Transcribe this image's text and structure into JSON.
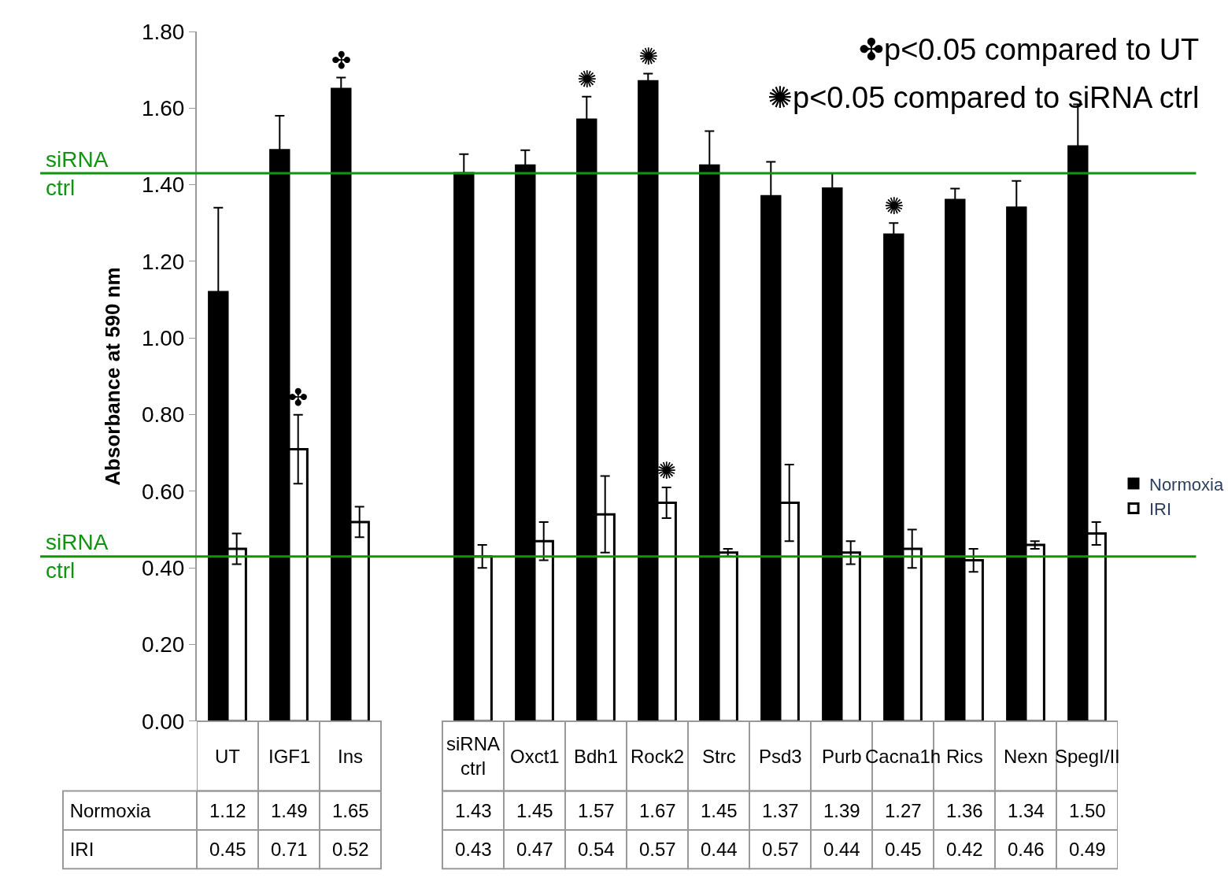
{
  "chart_data": {
    "type": "bar",
    "ylabel": "Absorbance at 590 nm",
    "categories": [
      "UT",
      "IGF1",
      "Ins",
      null,
      "siRNA ctrl",
      "Oxct1",
      "Bdh1",
      "Rock2",
      "Strc",
      "Psd3",
      "Purb",
      "Cacna1h",
      "Rics",
      "Nexn",
      "SpegI/II"
    ],
    "series": [
      {
        "name": "Normoxia",
        "color": "#000000",
        "values": [
          1.12,
          1.49,
          1.65,
          null,
          1.43,
          1.45,
          1.57,
          1.67,
          1.45,
          1.37,
          1.39,
          1.27,
          1.36,
          1.34,
          1.5
        ],
        "value_labels": [
          "1.12",
          "1.49",
          "1.65",
          null,
          "1.43",
          "1.45",
          "1.57",
          "1.67",
          "1.45",
          "1.37",
          "1.39",
          "1.27",
          "1.36",
          "1.34",
          "1.50"
        ],
        "errors": [
          0.22,
          0.09,
          0.03,
          null,
          0.05,
          0.04,
          0.06,
          0.02,
          0.09,
          0.09,
          0.04,
          0.03,
          0.03,
          0.07,
          0.11
        ]
      },
      {
        "name": "IRI",
        "color": "#ffffff",
        "values": [
          0.45,
          0.71,
          0.52,
          null,
          0.43,
          0.47,
          0.54,
          0.57,
          0.44,
          0.57,
          0.44,
          0.45,
          0.42,
          0.46,
          0.49
        ],
        "value_labels": [
          "0.45",
          "0.71",
          "0.52",
          null,
          "0.43",
          "0.47",
          "0.54",
          "0.57",
          "0.44",
          "0.57",
          "0.44",
          "0.45",
          "0.42",
          "0.46",
          "0.49"
        ],
        "errors": [
          0.04,
          0.09,
          0.04,
          null,
          0.03,
          0.05,
          0.1,
          0.04,
          0.01,
          0.1,
          0.03,
          0.05,
          0.03,
          0.01,
          0.03
        ]
      }
    ],
    "ylim": [
      0,
      1.8
    ],
    "yticks": [
      {
        "value": 0,
        "label": "0.00"
      },
      {
        "value": 0.2,
        "label": "0.20"
      },
      {
        "value": 0.4,
        "label": "0.40"
      },
      {
        "value": 0.6,
        "label": "0.60"
      },
      {
        "value": 0.8,
        "label": "0.80"
      },
      {
        "value": 1.0,
        "label": "1.00"
      },
      {
        "value": 1.2,
        "label": "1.20"
      },
      {
        "value": 1.4,
        "label": "1.40"
      },
      {
        "value": 1.6,
        "label": "1.60"
      },
      {
        "value": 1.8,
        "label": "1.80"
      }
    ],
    "ref_lines": [
      {
        "axis": "y",
        "value": 1.43,
        "label": "siRNA ctrl",
        "color": "#109410"
      },
      {
        "axis": "y",
        "value": 0.43,
        "label": "siRNA ctrl",
        "color": "#109410"
      }
    ],
    "annotations": [
      "✤p<0.05 compared to UT",
      "✺p<0.05 compared to siRNA ctrl",
      {
        "text": "✤",
        "x": "Ins",
        "y": 1.65
      },
      {
        "text": "✤",
        "x": "IGF1",
        "y": 0.71
      },
      {
        "text": "✺",
        "x": "Bdh1",
        "y": 1.57
      },
      {
        "text": "✺",
        "x": "Rock2",
        "y": 1.67
      },
      {
        "text": "✺",
        "x": "Cacna1h",
        "y": 1.27
      },
      {
        "text": "✺",
        "x": "Rock2",
        "y": 0.57
      }
    ],
    "legend": "right",
    "grid": false
  }
}
